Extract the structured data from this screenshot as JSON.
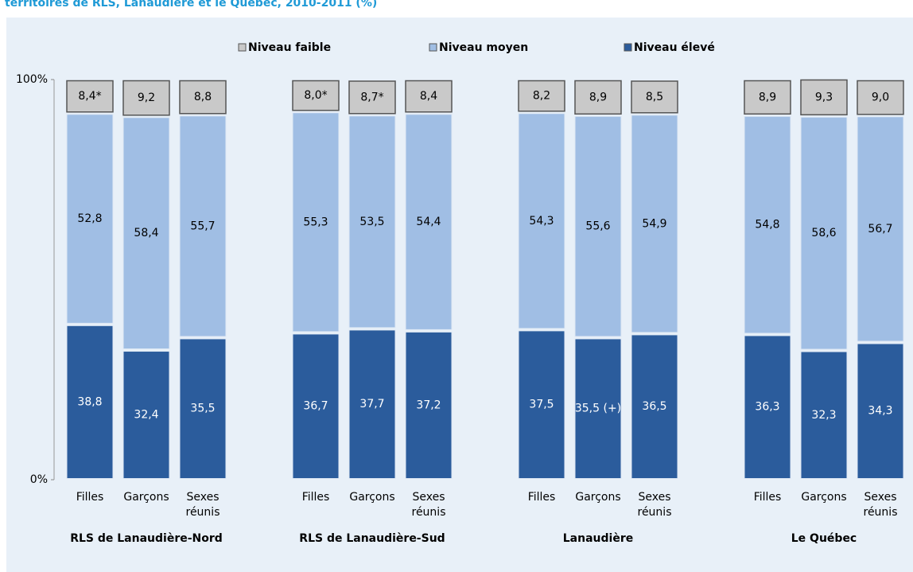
{
  "chart_data": {
    "type": "stacked-bar",
    "title": "territoires de RLS, Lanaudière et le Québec, 2010-2011 (%)",
    "categories": [
      "Filles",
      "Garçons",
      "Sexes réunis",
      "Filles",
      "Garçons",
      "Sexes réunis",
      "Filles",
      "Garçons",
      "Sexes réunis",
      "Filles",
      "Garçons",
      "Sexes réunis"
    ],
    "groups": [
      "RLS de Lanaudière-Nord",
      "RLS de Lanaudière-Sud",
      "Lanaudière",
      "Le Québec"
    ],
    "series": [
      {
        "name": "Niveau élevé",
        "color": "#2b5c9c",
        "label_color": "#ffffff",
        "values": [
          38.8,
          32.4,
          35.5,
          36.7,
          37.7,
          37.2,
          37.5,
          35.5,
          36.5,
          36.3,
          32.3,
          34.3
        ],
        "value_labels": [
          "38,8",
          "32,4",
          "35,5",
          "36,7",
          "37,7",
          "37,2",
          "37,5",
          "35,5 (+)",
          "36,5",
          "36,3",
          "32,3",
          "34,3"
        ]
      },
      {
        "name": "Niveau moyen",
        "color": "#a0bee4",
        "label_color": "#000000",
        "values": [
          52.8,
          58.4,
          55.7,
          55.3,
          53.5,
          54.4,
          54.3,
          55.6,
          54.9,
          54.8,
          58.6,
          56.7
        ],
        "value_labels": [
          "52,8",
          "58,4",
          "55,7",
          "55,3",
          "53,5",
          "54,4",
          "54,3",
          "55,6",
          "54,9",
          "54,8",
          "58,6",
          "56,7"
        ]
      },
      {
        "name": "Niveau faible",
        "color": "#c9c9c9",
        "label_color": "#000000",
        "values": [
          8.4,
          9.2,
          8.8,
          8.0,
          8.7,
          8.4,
          8.2,
          8.9,
          8.5,
          8.9,
          9.3,
          9.0
        ],
        "value_labels": [
          "8,4*",
          "9,2",
          "8,8",
          "8,0*",
          "8,7*",
          "8,4",
          "8,2",
          "8,9",
          "8,5",
          "8,9",
          "9,3",
          "9,0"
        ]
      }
    ],
    "legend_order": [
      2,
      1,
      0
    ],
    "ylim": [
      0,
      100
    ],
    "yticks": [
      {
        "value": 0,
        "label": "0%"
      },
      {
        "value": 100,
        "label": "100%"
      }
    ]
  }
}
